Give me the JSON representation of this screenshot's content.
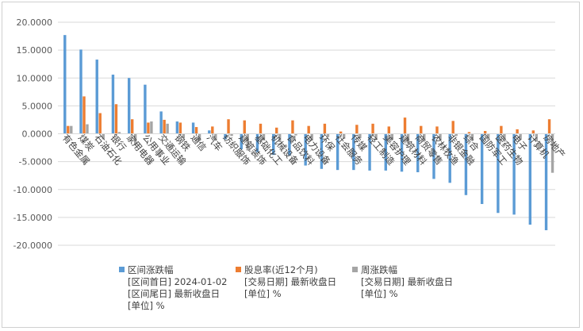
{
  "chart_data": {
    "type": "bar",
    "ylim": [
      -20,
      20
    ],
    "ytick_step": 5,
    "grid": true,
    "legend_position": "bottom",
    "categories": [
      "有色金属",
      "煤炭",
      "石油石化",
      "银行",
      "家用电器",
      "公用事业",
      "交通运输",
      "钢铁",
      "通信",
      "汽车",
      "纺织服饰",
      "建筑装饰",
      "基础化工",
      "机械设备",
      "食品饮料",
      "电力设备",
      "环保",
      "社会服务",
      "传媒",
      "轻工制造",
      "美容护理",
      "建筑材料",
      "商贸零售",
      "农林牧渔",
      "非银金融",
      "综合",
      "国防军工",
      "医药生物",
      "电子",
      "计算机",
      "房地产"
    ],
    "series": [
      {
        "name": "区间涨跌幅",
        "color": "#5b9bd5",
        "legend_lines": [
          "[区间首日] 2024-01-02",
          "[区间尾日] 最新收盘日",
          "[单位] %"
        ],
        "values": [
          17.7,
          15.1,
          13.3,
          10.6,
          10.0,
          8.8,
          4.0,
          2.2,
          2.0,
          0.6,
          -1.0,
          -2.8,
          -3.3,
          -3.8,
          -3.9,
          -5.7,
          -6.3,
          -6.5,
          -6.5,
          -6.6,
          -6.6,
          -6.8,
          -6.9,
          -8.1,
          -8.8,
          -11.0,
          -12.6,
          -14.2,
          -14.5,
          -16.3,
          -17.3
        ]
      },
      {
        "name": "股息率(近12个月)",
        "color": "#ed7d31",
        "legend_lines": [
          "[交易日期] 最新收盘日",
          "[单位] %"
        ],
        "values": [
          1.4,
          6.7,
          3.7,
          5.3,
          2.6,
          2.0,
          2.5,
          2.0,
          1.2,
          1.3,
          2.6,
          2.4,
          1.8,
          1.1,
          2.4,
          1.4,
          1.8,
          0.4,
          1.6,
          1.8,
          1.3,
          2.9,
          1.4,
          1.3,
          2.3,
          0.3,
          0.5,
          1.4,
          0.8,
          0.6,
          2.6
        ]
      },
      {
        "name": "周涨跌幅",
        "color": "#a5a5a5",
        "legend_lines": [
          "[交易日期] 最新收盘日",
          "[单位] %"
        ],
        "values": [
          1.4,
          1.7,
          -1.0,
          0.3,
          -2.0,
          2.2,
          1.8,
          -0.8,
          -1.3,
          -1.2,
          -0.4,
          -3.0,
          -1.2,
          -1.5,
          -0.3,
          -1.2,
          -0.6,
          -0.9,
          -0.8,
          -1.0,
          -1.1,
          -1.8,
          -1.4,
          -1.3,
          -0.4,
          -1.1,
          -0.8,
          -1.4,
          -1.1,
          -1.4,
          -7.0
        ]
      }
    ]
  },
  "y_tick_labels": [
    "20.0000",
    "15.0000",
    "10.0000",
    "5.0000",
    "0.0000",
    "-5.0000",
    "-10.0000",
    "-15.0000",
    "-20.0000"
  ]
}
